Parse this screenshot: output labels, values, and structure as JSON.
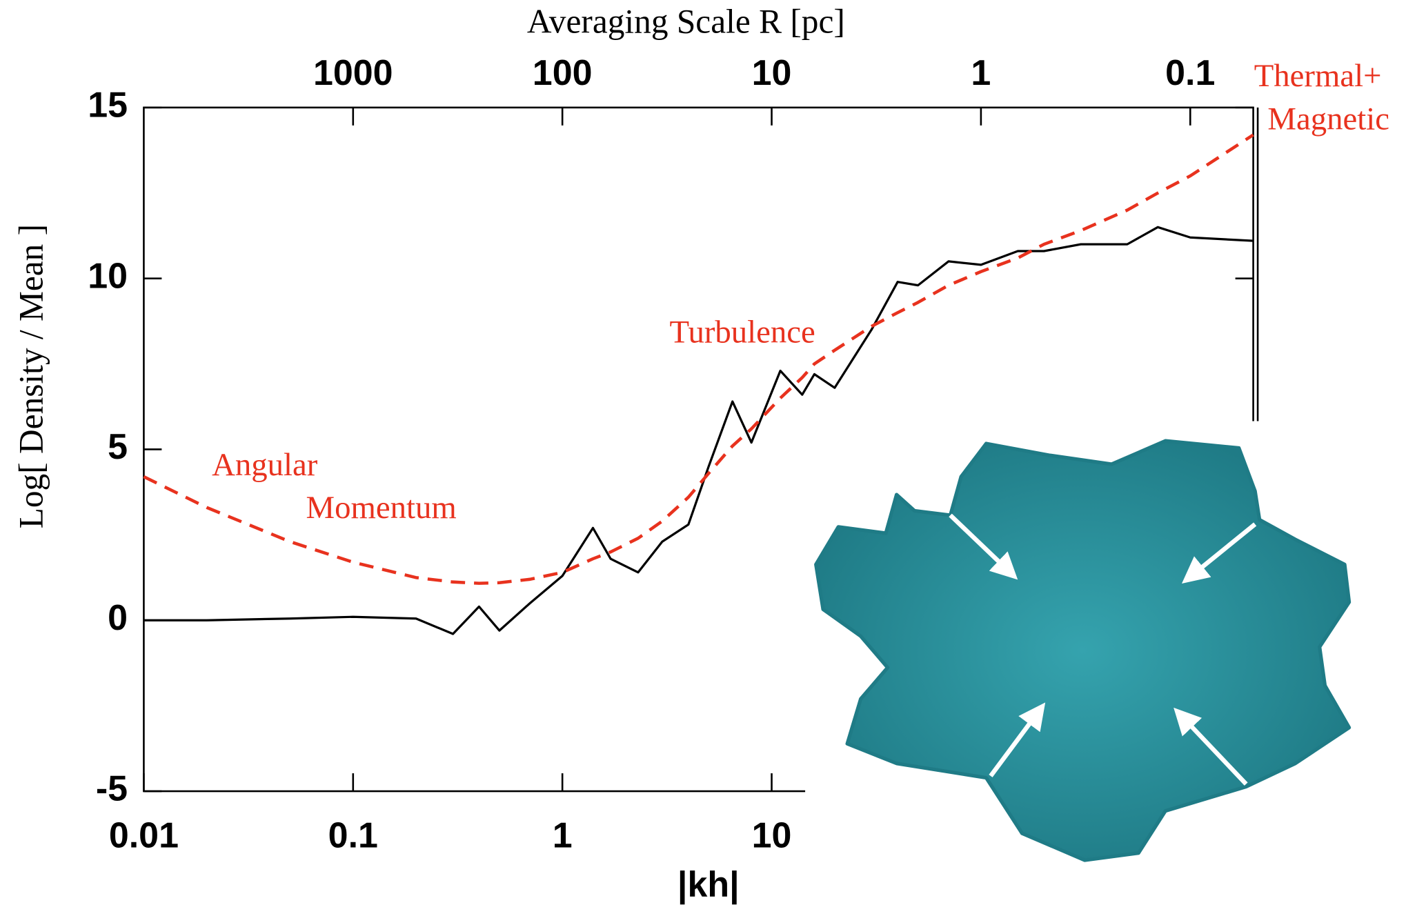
{
  "chart_data": {
    "type": "line",
    "top_label": "Averaging Scale  R [pc]",
    "x_label": "|kh|",
    "y_label": "Log[ Density / Mean ]",
    "xscale": "log",
    "xlim": [
      0.01,
      2000
    ],
    "xticks": [
      0.01,
      0.1,
      1,
      10
    ],
    "x2scale": "log",
    "x2lim": [
      10000,
      0.05
    ],
    "x2ticks": [
      1000,
      100,
      10,
      1,
      0.1
    ],
    "ylim": [
      -5,
      15
    ],
    "yticks": [
      -5,
      0,
      5,
      10,
      15
    ],
    "x": [
      0.01,
      0.02,
      0.05,
      0.1,
      0.2,
      0.3,
      0.4,
      0.5,
      0.7,
      1,
      1.4,
      1.7,
      2.3,
      3,
      4,
      5,
      6.5,
      8,
      11,
      14,
      16,
      20,
      30,
      40,
      50,
      70,
      100,
      150,
      200,
      300,
      500,
      700,
      1000,
      2000
    ],
    "series": [
      {
        "color": "#000000",
        "linestyle": "solid",
        "values": [
          0,
          0,
          0.05,
          0.1,
          0.05,
          -0.4,
          0.4,
          -0.3,
          0.5,
          1.3,
          2.7,
          1.8,
          1.4,
          2.3,
          2.8,
          4.5,
          6.4,
          5.2,
          7.3,
          6.6,
          7.2,
          6.8,
          8.5,
          9.9,
          9.8,
          10.5,
          10.4,
          10.8,
          10.8,
          11.0,
          11.0,
          11.5,
          11.2,
          11.1
        ]
      },
      {
        "color": "#e8321e",
        "linestyle": "dashed",
        "values": [
          4.2,
          3.3,
          2.3,
          1.7,
          1.25,
          1.12,
          1.08,
          1.1,
          1.2,
          1.4,
          1.8,
          2.0,
          2.4,
          2.9,
          3.6,
          4.3,
          5.1,
          5.6,
          6.5,
          7.1,
          7.5,
          7.9,
          8.6,
          9.0,
          9.3,
          9.8,
          10.2,
          10.6,
          11.0,
          11.4,
          12.0,
          12.5,
          13.0,
          14.2
        ]
      }
    ],
    "annotations": [
      {
        "lines": [
          "Angular",
          "Momentum"
        ]
      },
      {
        "lines": [
          "Turbulence"
        ]
      },
      {
        "lines": [
          "Thermal+",
          "Magnetic"
        ]
      }
    ]
  }
}
